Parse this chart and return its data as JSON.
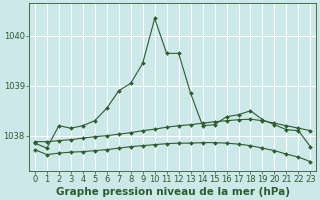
{
  "title": "Graphe pression niveau de la mer (hPa)",
  "bg_color": "#cce8e8",
  "grid_color": "#ffffff",
  "line_color": "#2d5c2d",
  "xlim": [
    -0.5,
    23.5
  ],
  "ylim": [
    1037.3,
    1040.65
  ],
  "yticks": [
    1038,
    1039,
    1040
  ],
  "xticks": [
    0,
    1,
    2,
    3,
    4,
    5,
    6,
    7,
    8,
    9,
    10,
    11,
    12,
    13,
    14,
    15,
    16,
    17,
    18,
    19,
    20,
    21,
    22,
    23
  ],
  "line1_x": [
    0,
    1,
    2,
    3,
    4,
    5,
    6,
    7,
    8,
    9,
    10,
    11,
    12,
    13,
    14,
    15,
    16,
    17,
    18,
    19,
    20,
    21,
    22,
    23
  ],
  "line1_y": [
    1037.85,
    1037.75,
    1038.2,
    1038.15,
    1038.2,
    1038.3,
    1038.55,
    1038.9,
    1039.05,
    1039.45,
    1040.35,
    1039.65,
    1039.65,
    1038.85,
    1038.2,
    1038.22,
    1038.38,
    1038.42,
    1038.5,
    1038.32,
    1038.22,
    1038.12,
    1038.1,
    1037.78
  ],
  "line2_x": [
    0,
    1,
    2,
    3,
    4,
    5,
    6,
    7,
    8,
    9,
    10,
    11,
    12,
    13,
    14,
    15,
    16,
    17,
    18,
    19,
    20,
    21,
    22,
    23
  ],
  "line2_y": [
    1037.88,
    1037.88,
    1037.9,
    1037.92,
    1037.95,
    1037.98,
    1038.0,
    1038.03,
    1038.06,
    1038.1,
    1038.13,
    1038.17,
    1038.2,
    1038.22,
    1038.25,
    1038.28,
    1038.3,
    1038.32,
    1038.33,
    1038.3,
    1038.25,
    1038.2,
    1038.15,
    1038.1
  ],
  "line3_x": [
    0,
    1,
    2,
    3,
    4,
    5,
    6,
    7,
    8,
    9,
    10,
    11,
    12,
    13,
    14,
    15,
    16,
    17,
    18,
    19,
    20,
    21,
    22,
    23
  ],
  "line3_y": [
    1037.72,
    1037.62,
    1037.65,
    1037.67,
    1037.68,
    1037.7,
    1037.72,
    1037.75,
    1037.78,
    1037.8,
    1037.82,
    1037.84,
    1037.85,
    1037.85,
    1037.86,
    1037.86,
    1037.85,
    1037.83,
    1037.8,
    1037.75,
    1037.7,
    1037.63,
    1037.57,
    1037.48
  ],
  "title_fontsize": 7.5,
  "tick_fontsize": 6.0,
  "markersize": 2.0
}
